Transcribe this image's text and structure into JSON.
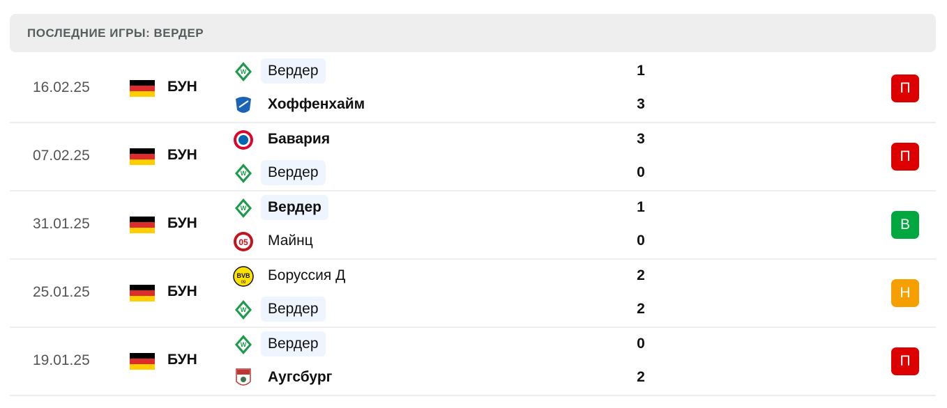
{
  "header": {
    "title": "ПОСЛЕДНИЕ ИГРЫ: ВЕРДЕР"
  },
  "colors": {
    "loss": "#dc0000",
    "win": "#00a83f",
    "draw": "#f5a000",
    "highlight": "#eef5ff"
  },
  "matches": [
    {
      "date": "16.02.25",
      "league": "БУН",
      "result": "П",
      "result_type": "loss",
      "home": {
        "name": "Вердер",
        "logo": "werder-logo-icon",
        "score": "1",
        "highlight": true,
        "bold": false
      },
      "away": {
        "name": "Хоффенхайм",
        "logo": "hoffenheim-logo-icon",
        "score": "3",
        "highlight": false,
        "bold": true
      }
    },
    {
      "date": "07.02.25",
      "league": "БУН",
      "result": "П",
      "result_type": "loss",
      "home": {
        "name": "Бавария",
        "logo": "bayern-logo-icon",
        "score": "3",
        "highlight": false,
        "bold": true
      },
      "away": {
        "name": "Вердер",
        "logo": "werder-logo-icon",
        "score": "0",
        "highlight": true,
        "bold": false
      }
    },
    {
      "date": "31.01.25",
      "league": "БУН",
      "result": "В",
      "result_type": "win",
      "home": {
        "name": "Вердер",
        "logo": "werder-logo-icon",
        "score": "1",
        "highlight": true,
        "bold": true
      },
      "away": {
        "name": "Майнц",
        "logo": "mainz-logo-icon",
        "score": "0",
        "highlight": false,
        "bold": false
      }
    },
    {
      "date": "25.01.25",
      "league": "БУН",
      "result": "Н",
      "result_type": "draw",
      "home": {
        "name": "Боруссия Д",
        "logo": "dortmund-logo-icon",
        "score": "2",
        "highlight": false,
        "bold": false
      },
      "away": {
        "name": "Вердер",
        "logo": "werder-logo-icon",
        "score": "2",
        "highlight": true,
        "bold": false
      }
    },
    {
      "date": "19.01.25",
      "league": "БУН",
      "result": "П",
      "result_type": "loss",
      "home": {
        "name": "Вердер",
        "logo": "werder-logo-icon",
        "score": "0",
        "highlight": true,
        "bold": false
      },
      "away": {
        "name": "Аугсбург",
        "logo": "augsburg-logo-icon",
        "score": "2",
        "highlight": false,
        "bold": true
      }
    }
  ]
}
